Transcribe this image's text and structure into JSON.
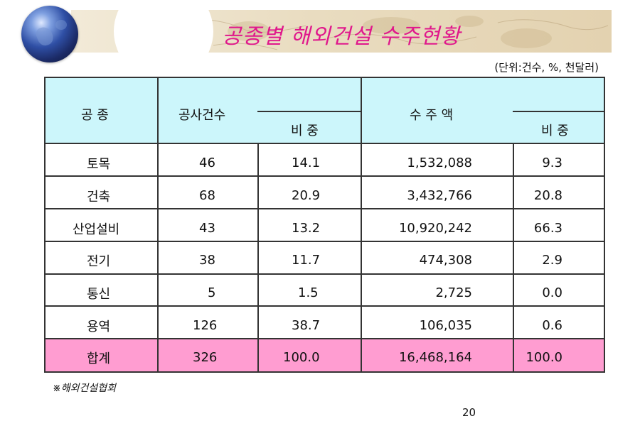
{
  "title": "공종별 해외건설 수주현황",
  "unit_note": "(단위:건수, %,  천달러)",
  "header": {
    "col_type": "공  종",
    "col_count": "공사건수",
    "col_count_share": "비 중",
    "col_amount": "수 주 액",
    "col_amount_share": "비 중"
  },
  "rows": [
    {
      "type": "토목",
      "count": "46",
      "count_share": "14.1",
      "amount": "1,532,088",
      "amount_share": "9.3"
    },
    {
      "type": "건축",
      "count": "68",
      "count_share": "20.9",
      "amount": "3,432,766",
      "amount_share": "20.8"
    },
    {
      "type": "산업설비",
      "count": "43",
      "count_share": "13.2",
      "amount": "10,920,242",
      "amount_share": "66.3"
    },
    {
      "type": "전기",
      "count": "38",
      "count_share": "11.7",
      "amount": "474,308",
      "amount_share": "2.9"
    },
    {
      "type": "통신",
      "count": "5",
      "count_share": "1.5",
      "amount": "2,725",
      "amount_share": "0.0"
    },
    {
      "type": "용역",
      "count": "126",
      "count_share": "38.7",
      "amount": "106,035",
      "amount_share": "0.6"
    }
  ],
  "total": {
    "type": "합계",
    "count": "326",
    "count_share": "100.0",
    "amount": "16,468,164",
    "amount_share": "100.0"
  },
  "source": "※해외건설협회",
  "page_number": "20",
  "colors": {
    "title": "#e0188c",
    "header_bg": "#ccf6fb",
    "total_bg": "#ff9dd1"
  }
}
